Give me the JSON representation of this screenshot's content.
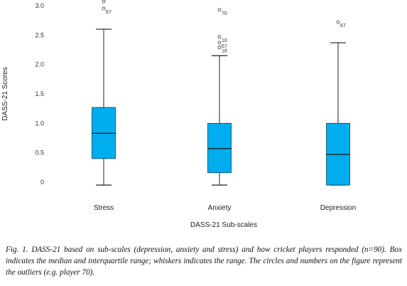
{
  "chart_data": {
    "type": "boxplot",
    "ylabel": "DASS-21 Scores",
    "xlabel": "DASS-21 Sub-scales",
    "yticks": [
      0,
      0.5,
      1.0,
      1.5,
      2.0,
      2.5,
      3.0
    ],
    "ytick_labels": [
      "0",
      "0.5",
      "1.0",
      "1.5",
      "2.0",
      "2.5",
      "3.0"
    ],
    "ylim": [
      -0.1,
      3.0
    ],
    "box_color": "#00aeef",
    "categories": [
      {
        "name": "Stress",
        "min": -0.05,
        "q1": 0.4,
        "median": 0.83,
        "q3": 1.27,
        "max": 2.6,
        "outliers": [
          {
            "value": 3.0,
            "label": ""
          },
          {
            "value": 3.0,
            "label": "67"
          }
        ]
      },
      {
        "name": "Anxiety",
        "min": -0.05,
        "q1": 0.16,
        "median": 0.57,
        "q3": 1.0,
        "max": 2.15,
        "outliers": [
          {
            "value": 2.93,
            "label": "70"
          },
          {
            "value": 2.47,
            "label": "10"
          },
          {
            "value": 2.37,
            "label": "67"
          },
          {
            "value": 2.29,
            "label": "18"
          }
        ]
      },
      {
        "name": "Depression",
        "min": -0.05,
        "q1": -0.05,
        "median": 0.47,
        "q3": 1.0,
        "max": 2.37,
        "outliers": [
          {
            "value": 2.72,
            "label": "67"
          }
        ]
      }
    ]
  },
  "caption": {
    "prefix": "Fig. 1.",
    "text": "DASS-21 based on sub-scales (depression, anxiety and stress) and how cricket players responded (n=90). Box indicates the median and interquartile range; whiskers indicates the range. The circles and numbers on the figure represent the outliers (e.g. player 70)."
  }
}
